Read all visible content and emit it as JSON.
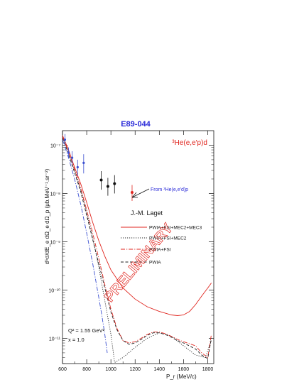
{
  "chart_data": {
    "type": "scatter",
    "title": "E89-044",
    "reaction": "³He(e,e'p)d",
    "xlabel": "P_r   (MeV/c)",
    "ylabel": "d⁵σ/dE_e dΩ_e dΩ_p  (μb.MeV⁻¹.sr⁻²)",
    "xlim": [
      600,
      1850
    ],
    "ylim": [
      3e-12,
      2e-07
    ],
    "log_y": true,
    "x_ticks": [
      600,
      800,
      1000,
      1200,
      1400,
      1600,
      1800
    ],
    "y_ticks": [
      {
        "value": 1e-07,
        "label": "10⁻⁷"
      },
      {
        "value": 1e-08,
        "label": "10⁻⁸"
      },
      {
        "value": 1e-09,
        "label": "10⁻⁹"
      },
      {
        "value": 1e-10,
        "label": "10⁻¹⁰"
      },
      {
        "value": 1e-11,
        "label": "10⁻¹¹"
      }
    ],
    "author": "J.-M. Laget",
    "annotation": "From ³He(e,e'd)p",
    "kinematics": [
      "Q² = 1.55 GeV²",
      "x = 1.0"
    ],
    "watermark": "PRELIMINARY",
    "legend": [
      {
        "label": "PWIA+FSI+MEC2+MEC3",
        "color": "#e0261f",
        "dash": "solid"
      },
      {
        "label": "PWIA+FSI+MEC2",
        "color": "#222222",
        "dash": "dotted"
      },
      {
        "label": "PWIA+FSI",
        "color": "#e0261f",
        "dash": "dashdot"
      },
      {
        "label": "PWIA",
        "color": "#222222",
        "dash": "dashed"
      }
    ],
    "data_points": [
      {
        "name": "low P_r (blue)",
        "color": "#3a4fd0",
        "points": [
          {
            "x": 620,
            "y": 1.3e-07,
            "ylo": 1e-07,
            "yhi": 1.7e-07
          },
          {
            "x": 650,
            "y": 7e-08,
            "ylo": 5.5e-08,
            "yhi": 9e-08
          },
          {
            "x": 680,
            "y": 5.5e-08,
            "ylo": 4e-08,
            "yhi": 7.5e-08
          },
          {
            "x": 725,
            "y": 3.5e-08,
            "ylo": 2.3e-08,
            "yhi": 5e-08
          },
          {
            "x": 775,
            "y": 4.3e-08,
            "ylo": 2.6e-08,
            "yhi": 6.5e-08
          }
        ]
      },
      {
        "name": "high P_r (black)",
        "color": "#111111",
        "points": [
          {
            "x": 920,
            "y": 1.9e-08,
            "ylo": 1.2e-08,
            "yhi": 2.9e-08
          },
          {
            "x": 975,
            "y": 1.4e-08,
            "ylo": 9e-09,
            "yhi": 2.1e-08
          },
          {
            "x": 1030,
            "y": 1.6e-08,
            "ylo": 1e-08,
            "yhi": 2.4e-08
          }
        ]
      },
      {
        "name": "From ³He(e,e'd)p",
        "color": "#e0261f",
        "points": [
          {
            "x": 1175,
            "y": 1.05e-08,
            "ylo": 7e-09,
            "yhi": 1.5e-08
          }
        ]
      }
    ],
    "series": [
      {
        "name": "PWIA+FSI+MEC2+MEC3",
        "color": "#e0261f",
        "dash": "solid",
        "x": [
          600,
          650,
          700,
          750,
          800,
          850,
          900,
          950,
          1000,
          1100,
          1200,
          1300,
          1400,
          1500,
          1550,
          1600,
          1650,
          1700,
          1750,
          1800,
          1830
        ],
        "y": [
          1.6e-07,
          8e-08,
          3.5e-08,
          1.6e-08,
          6.5e-09,
          2.5e-09,
          1.05e-09,
          5e-10,
          2.6e-10,
          1.1e-10,
          6.5e-11,
          4.5e-11,
          3.6e-11,
          3.05e-11,
          2.95e-11,
          3.05e-11,
          3.6e-11,
          5e-11,
          7.5e-11,
          1.1e-10,
          1.4e-10
        ]
      },
      {
        "name": "PWIA+FSI+MEC2",
        "color": "#222222",
        "dash": "dotted",
        "x": [
          600,
          650,
          700,
          750,
          800,
          850,
          900,
          950,
          1000,
          1020,
          1030,
          1040,
          1060,
          1100,
          1200,
          1300,
          1400,
          1500,
          1600,
          1700,
          1780,
          1830
        ],
        "y": [
          1.5e-07,
          7e-08,
          3e-08,
          1.2e-08,
          4e-09,
          1.2e-09,
          3e-10,
          6e-11,
          1.2e-11,
          5e-12,
          3.2e-12,
          3.2e-12,
          3.5e-12,
          4e-12,
          6.5e-12,
          1e-11,
          1.3e-11,
          1.1e-11,
          7e-12,
          4.5e-12,
          4e-12,
          9e-12
        ]
      },
      {
        "name": "PWIA+FSI",
        "color": "#e0261f",
        "dash": "dashdot",
        "x": [
          600,
          650,
          700,
          750,
          800,
          850,
          900,
          950,
          1000,
          1050,
          1100,
          1150,
          1200,
          1250,
          1300,
          1350,
          1400,
          1450,
          1500,
          1550,
          1600,
          1700,
          1750,
          1800,
          1830
        ],
        "y": [
          1.5e-07,
          7.5e-08,
          3.2e-08,
          1.3e-08,
          4.5e-09,
          1.5e-09,
          4.5e-10,
          1.3e-10,
          4e-11,
          1.6e-11,
          9e-12,
          8e-12,
          8.5e-12,
          1e-11,
          1.2e-11,
          1.35e-11,
          1.35e-11,
          1.25e-11,
          1.1e-11,
          9.5e-12,
          8.5e-12,
          7e-12,
          5e-12,
          4e-12,
          1.2e-11
        ]
      },
      {
        "name": "PWIA",
        "color": "#222222",
        "dash": "dashed",
        "x": [
          600,
          650,
          700,
          750,
          800,
          850,
          900,
          950,
          1000,
          1050,
          1100,
          1150,
          1200,
          1250,
          1300,
          1350,
          1400,
          1450,
          1500,
          1550,
          1600,
          1700,
          1750,
          1800,
          1830
        ],
        "y": [
          1.4e-07,
          6.5e-08,
          2.7e-08,
          1.1e-08,
          3.5e-09,
          1.1e-09,
          3.5e-10,
          1.1e-10,
          3.5e-11,
          1.5e-11,
          9e-12,
          7.5e-12,
          8e-12,
          9.5e-12,
          1.15e-11,
          1.3e-11,
          1.3e-11,
          1.2e-11,
          1.05e-11,
          9e-12,
          8e-12,
          6e-12,
          4.5e-12,
          3.8e-12,
          1e-11
        ]
      },
      {
        "name": "",
        "color": "#3a4fd0",
        "dash": "dashdot",
        "x": [
          600,
          650,
          700,
          750,
          800,
          850,
          900,
          925,
          950,
          970
        ],
        "y": [
          1.3e-07,
          5.5e-08,
          2e-08,
          6e-09,
          1.5e-09,
          3.5e-10,
          7e-11,
          3e-11,
          1.2e-11,
          5e-12
        ]
      }
    ]
  }
}
